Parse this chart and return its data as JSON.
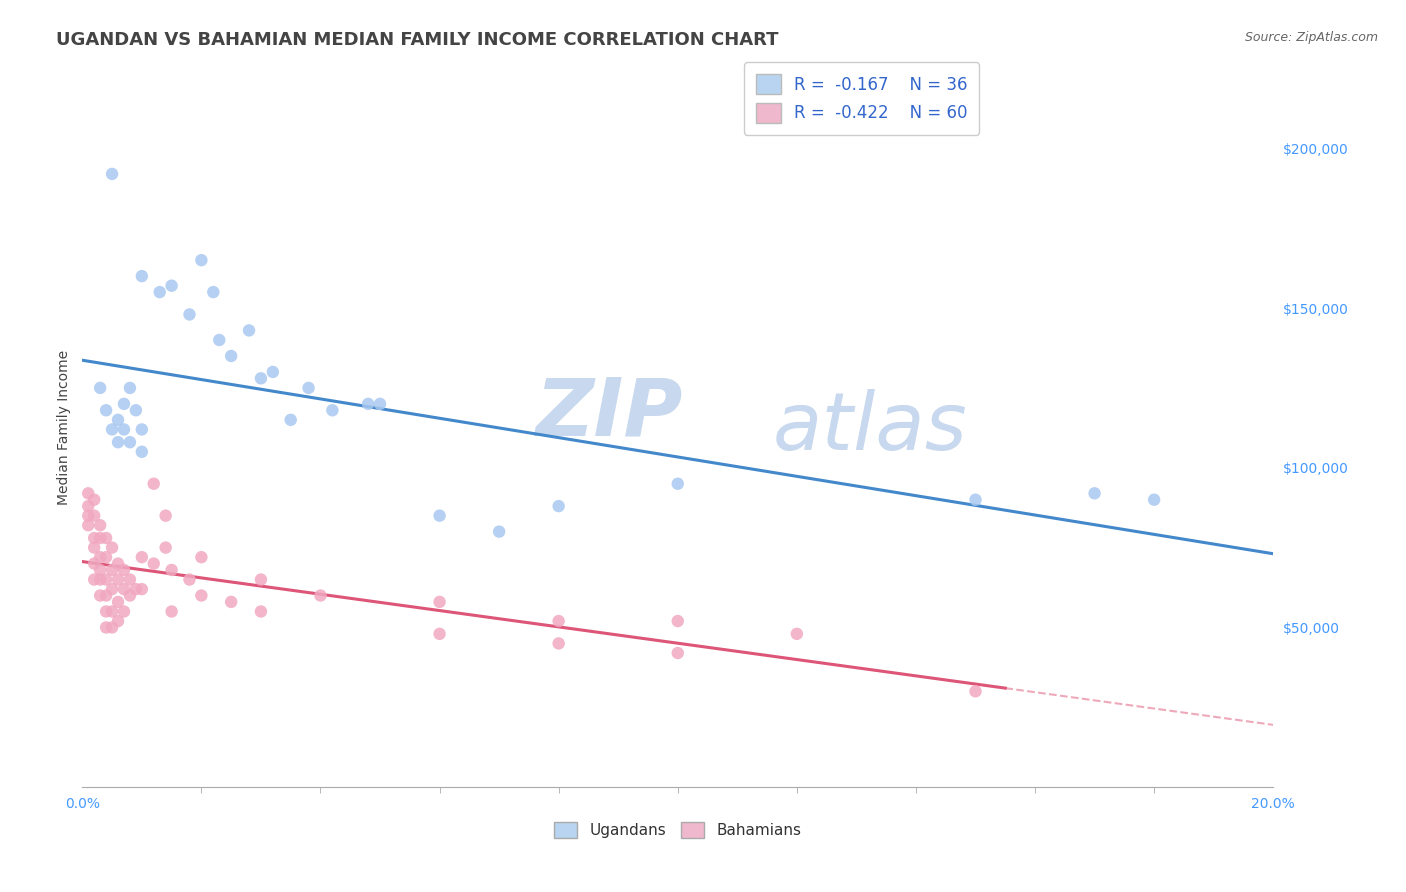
{
  "title": "UGANDAN VS BAHAMIAN MEDIAN FAMILY INCOME CORRELATION CHART",
  "source": "Source: ZipAtlas.com",
  "ylabel": "Median Family Income",
  "watermark_zip": "ZIP",
  "watermark_atlas": "atlas",
  "legend_ugandan_R": "-0.167",
  "legend_ugandan_N": "36",
  "legend_bahamian_R": "-0.422",
  "legend_bahamian_N": "60",
  "ugandan_color": "#a8c8f0",
  "bahamian_color": "#f0a8c0",
  "ugandan_line_color": "#4488cc",
  "bahamian_line_color": "#dd5577",
  "ugandan_color_legend": "#b8d4f0",
  "bahamian_color_legend": "#f0b8cc",
  "ytick_values": [
    50000,
    100000,
    150000,
    200000
  ],
  "ymin": 0,
  "ymax": 225000,
  "xmin": 0.0,
  "xmax": 0.2,
  "ugandan_points": [
    [
      0.005,
      192000
    ],
    [
      0.01,
      160000
    ],
    [
      0.013,
      155000
    ],
    [
      0.015,
      157000
    ],
    [
      0.018,
      148000
    ],
    [
      0.02,
      165000
    ],
    [
      0.022,
      155000
    ],
    [
      0.023,
      140000
    ],
    [
      0.025,
      135000
    ],
    [
      0.028,
      143000
    ],
    [
      0.03,
      128000
    ],
    [
      0.032,
      130000
    ],
    [
      0.035,
      115000
    ],
    [
      0.038,
      125000
    ],
    [
      0.042,
      118000
    ],
    [
      0.048,
      120000
    ],
    [
      0.003,
      125000
    ],
    [
      0.004,
      118000
    ],
    [
      0.005,
      112000
    ],
    [
      0.006,
      108000
    ],
    [
      0.006,
      115000
    ],
    [
      0.007,
      120000
    ],
    [
      0.007,
      112000
    ],
    [
      0.008,
      108000
    ],
    [
      0.008,
      125000
    ],
    [
      0.009,
      118000
    ],
    [
      0.01,
      105000
    ],
    [
      0.01,
      112000
    ],
    [
      0.05,
      120000
    ],
    [
      0.1,
      95000
    ],
    [
      0.15,
      90000
    ],
    [
      0.17,
      92000
    ],
    [
      0.07,
      80000
    ],
    [
      0.08,
      88000
    ],
    [
      0.06,
      85000
    ],
    [
      0.18,
      90000
    ]
  ],
  "bahamian_points": [
    [
      0.001,
      92000
    ],
    [
      0.001,
      88000
    ],
    [
      0.001,
      85000
    ],
    [
      0.001,
      82000
    ],
    [
      0.002,
      90000
    ],
    [
      0.002,
      85000
    ],
    [
      0.002,
      78000
    ],
    [
      0.002,
      75000
    ],
    [
      0.002,
      70000
    ],
    [
      0.002,
      65000
    ],
    [
      0.003,
      82000
    ],
    [
      0.003,
      78000
    ],
    [
      0.003,
      72000
    ],
    [
      0.003,
      68000
    ],
    [
      0.003,
      65000
    ],
    [
      0.003,
      60000
    ],
    [
      0.004,
      78000
    ],
    [
      0.004,
      72000
    ],
    [
      0.004,
      65000
    ],
    [
      0.004,
      60000
    ],
    [
      0.004,
      55000
    ],
    [
      0.004,
      50000
    ],
    [
      0.005,
      75000
    ],
    [
      0.005,
      68000
    ],
    [
      0.005,
      62000
    ],
    [
      0.005,
      55000
    ],
    [
      0.005,
      50000
    ],
    [
      0.006,
      70000
    ],
    [
      0.006,
      65000
    ],
    [
      0.006,
      58000
    ],
    [
      0.006,
      52000
    ],
    [
      0.007,
      68000
    ],
    [
      0.007,
      62000
    ],
    [
      0.007,
      55000
    ],
    [
      0.008,
      65000
    ],
    [
      0.008,
      60000
    ],
    [
      0.009,
      62000
    ],
    [
      0.01,
      72000
    ],
    [
      0.01,
      62000
    ],
    [
      0.012,
      95000
    ],
    [
      0.012,
      70000
    ],
    [
      0.014,
      85000
    ],
    [
      0.014,
      75000
    ],
    [
      0.015,
      68000
    ],
    [
      0.015,
      55000
    ],
    [
      0.018,
      65000
    ],
    [
      0.02,
      72000
    ],
    [
      0.02,
      60000
    ],
    [
      0.025,
      58000
    ],
    [
      0.03,
      65000
    ],
    [
      0.03,
      55000
    ],
    [
      0.04,
      60000
    ],
    [
      0.06,
      58000
    ],
    [
      0.06,
      48000
    ],
    [
      0.08,
      52000
    ],
    [
      0.08,
      45000
    ],
    [
      0.1,
      52000
    ],
    [
      0.1,
      42000
    ],
    [
      0.12,
      48000
    ],
    [
      0.15,
      30000
    ]
  ],
  "background_color": "#ffffff",
  "grid_color": "#cccccc",
  "title_color": "#444444",
  "axis_color": "#aaaaaa",
  "source_color": "#666666",
  "title_fontsize": 13,
  "label_fontsize": 10,
  "tick_fontsize": 10,
  "right_tick_color": "#4499ff"
}
